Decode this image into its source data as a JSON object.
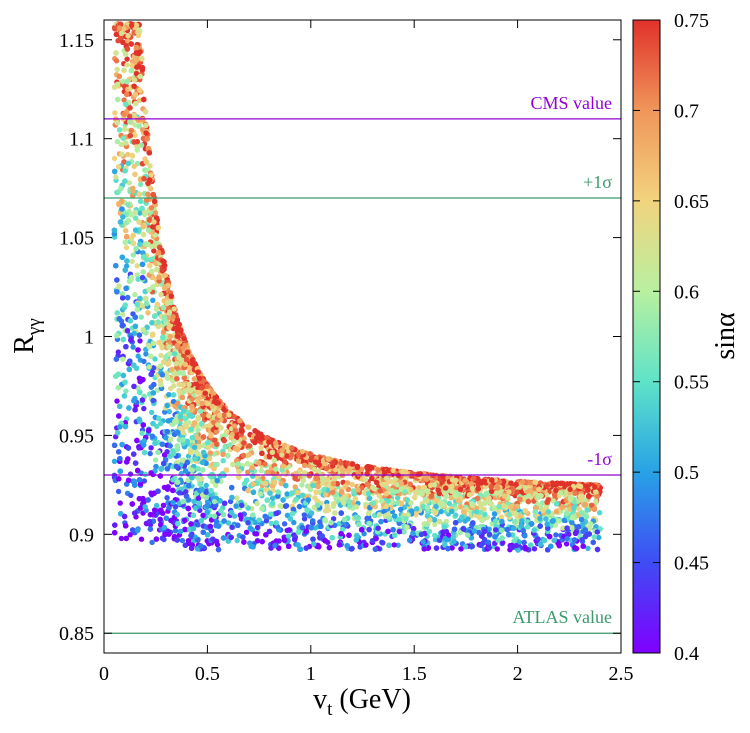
{
  "chart_data": {
    "type": "scatter",
    "title": "",
    "xlabel": "v_t (GeV)",
    "xlabel_main": "v",
    "xlabel_sub": "t",
    "xlabel_tail": " (GeV)",
    "ylabel": "R_γγ",
    "ylabel_main": "R",
    "ylabel_sub": "γγ",
    "xlim": [
      0,
      2.5
    ],
    "ylim": [
      0.84,
      1.16
    ],
    "x_ticks": [
      0,
      0.5,
      1,
      1.5,
      2,
      2.5
    ],
    "x_tick_labels": [
      "0",
      "0.5",
      "1",
      "1.5",
      "2",
      "2.5"
    ],
    "y_ticks": [
      0.85,
      0.9,
      0.95,
      1,
      1.05,
      1.1,
      1.15
    ],
    "y_tick_labels": [
      "0.85",
      "0.9",
      "0.95",
      "1",
      "1.05",
      "1.1",
      "1.15"
    ],
    "colorbar": {
      "label": "sinα",
      "range": [
        0.4,
        0.75
      ],
      "ticks": [
        0.4,
        0.45,
        0.5,
        0.55,
        0.6,
        0.65,
        0.7,
        0.75
      ],
      "tick_labels": [
        "0.4",
        "0.45",
        "0.5",
        "0.55",
        "0.6",
        "0.65",
        "0.7",
        "0.75"
      ],
      "colormap": [
        "#7f00ff",
        "#3f4cf5",
        "#28a2e6",
        "#5fe3c8",
        "#b8f0a0",
        "#f2d37e",
        "#f0965a",
        "#e0312a"
      ]
    },
    "scatter_model": {
      "points": 9000,
      "x_range": [
        0.05,
        2.4
      ],
      "upper_envelope": "R_max(v) = 0.918 + 0.0225 / v^1.35",
      "lower_floor": 0.892,
      "color_trend": "sinα highest (red) near upper envelope, lowest (blue/violet) near lower floor and at small v_t"
    },
    "reference_lines": [
      {
        "name": "CMS value",
        "label": "CMS value",
        "y": 1.11,
        "color": "#9400d3"
      },
      {
        "name": "+1σ",
        "label": "+1σ",
        "y": 1.07,
        "color": "#3a9a6a"
      },
      {
        "name": "-1σ",
        "label": "-1σ",
        "y": 0.93,
        "color": "#9400d3"
      },
      {
        "name": "ATLAS value",
        "label": "ATLAS value",
        "y": 0.85,
        "color": "#3a9a6a"
      }
    ]
  }
}
